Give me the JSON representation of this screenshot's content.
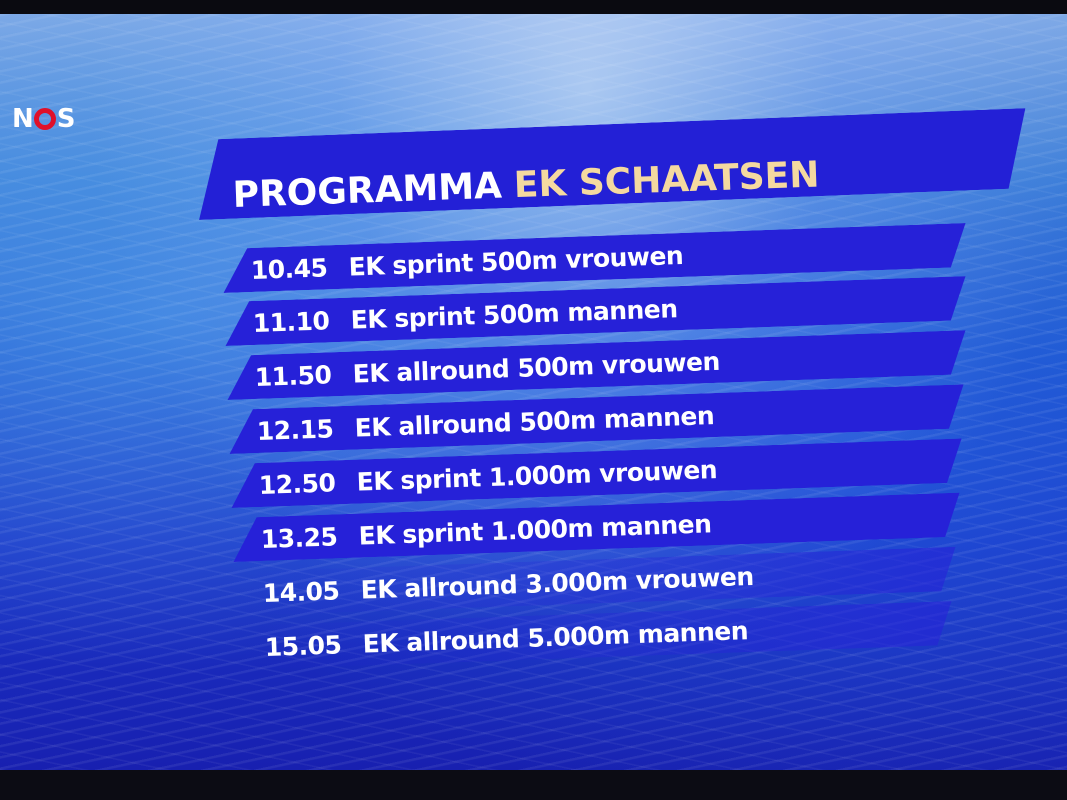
{
  "logo": {
    "text_n": "N",
    "text_s": "S",
    "accent": "#e0102a"
  },
  "title": {
    "part1": "PROGRAMMA",
    "part2": "EK SCHAATSEN",
    "part1_color": "#ffffff",
    "part2_color": "#f4d9a0"
  },
  "banner_color": "#2621d8",
  "schedule": [
    {
      "time": "10.45",
      "event": "EK sprint 500m vrouwen"
    },
    {
      "time": "11.10",
      "event": "EK sprint 500m mannen"
    },
    {
      "time": "11.50",
      "event": "EK allround 500m vrouwen"
    },
    {
      "time": "12.15",
      "event": "EK allround 500m mannen"
    },
    {
      "time": "12.50",
      "event": "EK sprint 1.000m vrouwen"
    },
    {
      "time": "13.25",
      "event": "EK sprint 1.000m mannen"
    },
    {
      "time": "14.05",
      "event": "EK allround 3.000m vrouwen"
    },
    {
      "time": "15.05",
      "event": "EK allround 5.000m mannen"
    }
  ]
}
